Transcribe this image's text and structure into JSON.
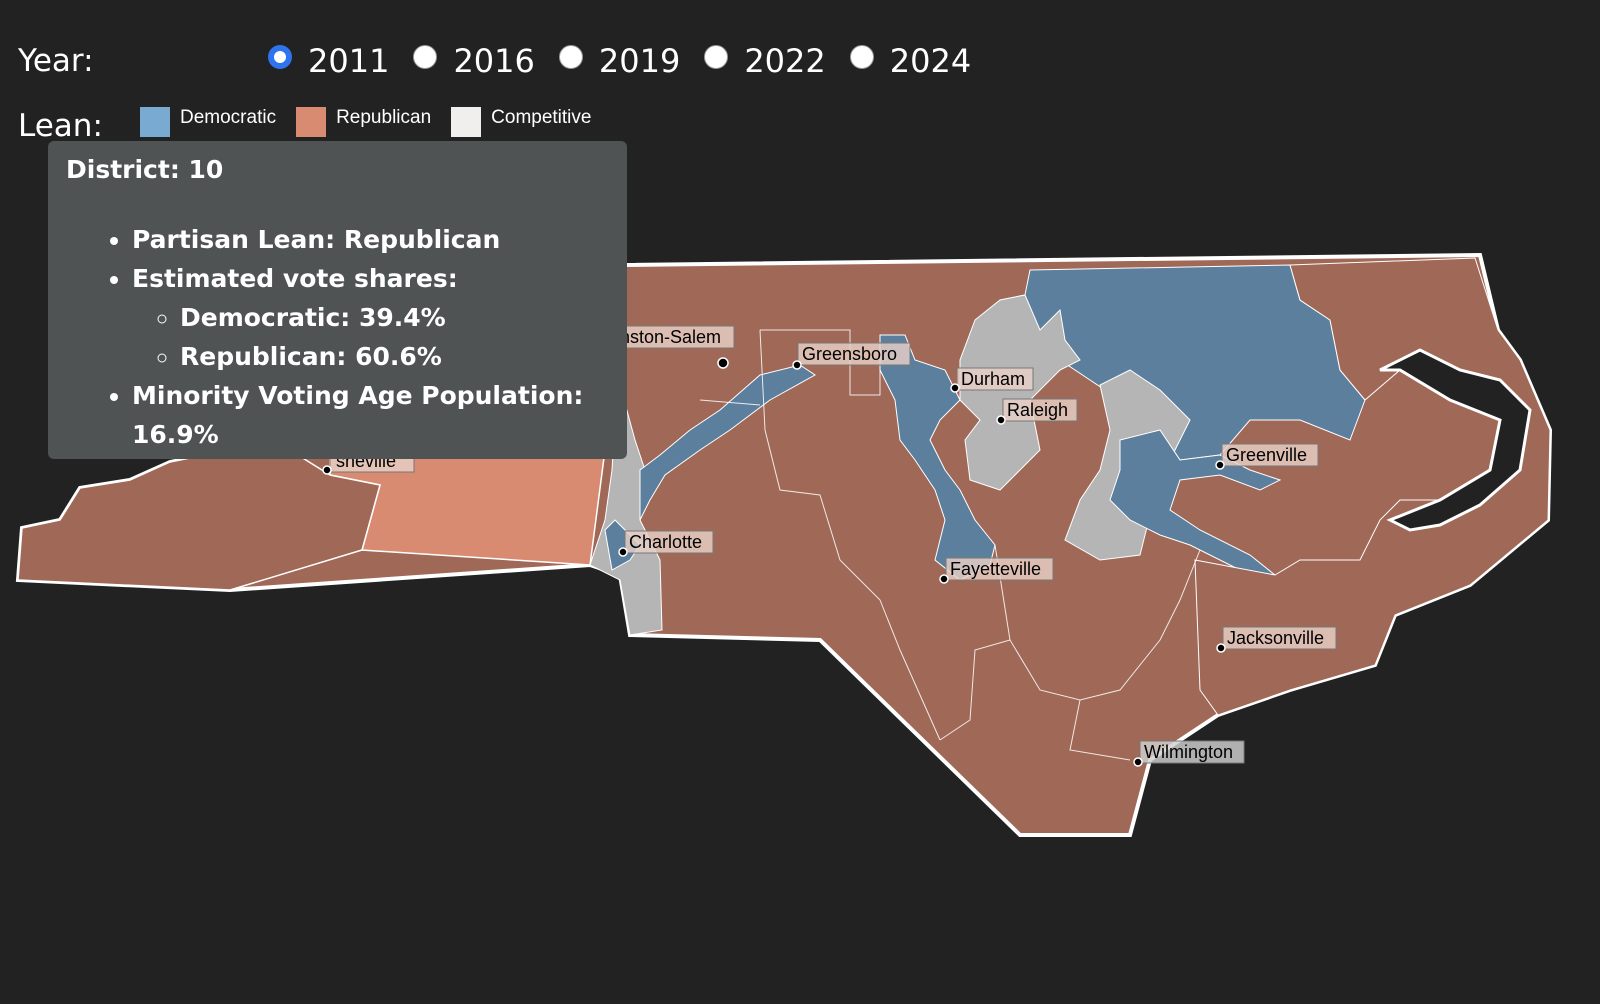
{
  "controls": {
    "year_label": "Year:",
    "years": [
      "2011",
      "2016",
      "2019",
      "2022",
      "2024"
    ],
    "selected_year": "2011",
    "lean_label": "Lean:",
    "legend": [
      {
        "label": "Democratic",
        "color": "#79abd2"
      },
      {
        "label": "Republican",
        "color": "#d98b72"
      },
      {
        "label": "Competitive",
        "color": "#f1eeee"
      }
    ]
  },
  "map": {
    "colors": {
      "democratic_fill": "#5c7f9e",
      "republican_fill": "#a06857",
      "republican_highlight_fill": "#d98b72",
      "competitive_fill": "#b6b5b5",
      "border": "#ffffff"
    },
    "cities": [
      {
        "name": "Winston-Salem",
        "visible_text": "nston-Salem"
      },
      {
        "name": "Greensboro",
        "visible_text": "Greensboro"
      },
      {
        "name": "Durham",
        "visible_text": "Durham"
      },
      {
        "name": "Raleigh",
        "visible_text": "Raleigh"
      },
      {
        "name": "Greenville",
        "visible_text": "Greenville"
      },
      {
        "name": "Asheville",
        "visible_text": "sheville"
      },
      {
        "name": "Charlotte",
        "visible_text": "Charlotte"
      },
      {
        "name": "Fayetteville",
        "visible_text": "Fayetteville"
      },
      {
        "name": "Jacksonville",
        "visible_text": "Jacksonville"
      },
      {
        "name": "Wilmington",
        "visible_text": "Wilmington"
      }
    ]
  },
  "tooltip": {
    "title": "District: 10",
    "lean": "Partisan Lean: Republican",
    "shares_label": "Estimated vote shares:",
    "dem_share": "Democratic: 39.4%",
    "rep_share": "Republican: 60.6%",
    "minority_vap": "Minority Voting Age Population: 16.9%"
  }
}
